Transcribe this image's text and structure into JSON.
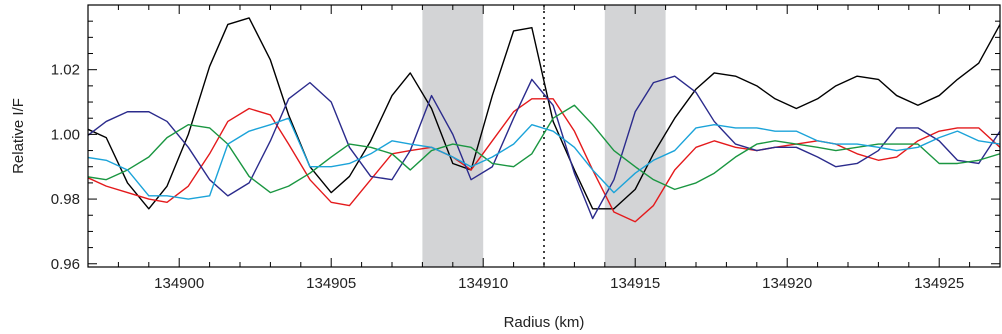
{
  "chart_data": {
    "type": "line",
    "title": "",
    "xlabel": "Radius (km)",
    "ylabel": "Relative I/F",
    "xlim": [
      134897.0,
      134927.0
    ],
    "ylim": [
      0.959,
      1.04
    ],
    "xticks": [
      134900,
      134905,
      134910,
      134915,
      134920,
      134925
    ],
    "xtick_labels": [
      "134900",
      "134905",
      "134910",
      "134915",
      "134920",
      "134925"
    ],
    "yticks": [
      0.96,
      0.98,
      1.0,
      1.02
    ],
    "ytick_labels": [
      "0.96",
      "0.98",
      "1.00",
      "1.02"
    ],
    "grid": false,
    "legend": "none",
    "shaded_regions": [
      {
        "x0": 134908.0,
        "x1": 134910.0,
        "color": "#d3d4d6"
      },
      {
        "x0": 134914.0,
        "x1": 134916.0,
        "color": "#d3d4d6"
      }
    ],
    "vertical_lines": [
      {
        "x": 134912.0,
        "style": "dotted",
        "color": "#000000"
      }
    ],
    "series": [
      {
        "color": "#000000",
        "x": [
          134896.9,
          134897.6,
          134898.3,
          134899.0,
          134899.6,
          134900.3,
          134901.0,
          134901.6,
          134902.3,
          134903.0,
          134903.6,
          134904.3,
          134905.0,
          134905.6,
          134906.3,
          134907.0,
          134907.6,
          134908.3,
          134909.0,
          134909.6,
          134910.3,
          134911.0,
          134911.6,
          134912.3,
          134913.0,
          134913.6,
          134914.3,
          134915.0,
          134915.6,
          134916.3,
          134917.0,
          134917.6,
          134918.3,
          134919.0,
          134919.6,
          134920.3,
          134921.0,
          134921.6,
          134922.3,
          134923.0,
          134923.6,
          134924.3,
          134925.0,
          134925.6,
          134926.3,
          134927.0
        ],
        "y": [
          1.002,
          0.999,
          0.985,
          0.977,
          0.984,
          1.0,
          1.021,
          1.034,
          1.036,
          1.023,
          1.006,
          0.99,
          0.982,
          0.987,
          0.998,
          1.012,
          1.019,
          1.008,
          0.991,
          0.989,
          1.012,
          1.032,
          1.033,
          1.004,
          0.989,
          0.977,
          0.977,
          0.983,
          0.994,
          1.005,
          1.014,
          1.019,
          1.018,
          1.015,
          1.011,
          1.008,
          1.011,
          1.015,
          1.018,
          1.017,
          1.012,
          1.009,
          1.012,
          1.017,
          1.022,
          1.034
        ]
      },
      {
        "color": "#e41a1c",
        "x": [
          134896.9,
          134897.6,
          134898.3,
          134899.0,
          134899.6,
          134900.3,
          134901.0,
          134901.6,
          134902.3,
          134903.0,
          134903.6,
          134904.3,
          134905.0,
          134905.6,
          134906.3,
          134907.0,
          134907.6,
          134908.3,
          134909.0,
          134909.6,
          134910.3,
          134911.0,
          134911.6,
          134912.3,
          134913.0,
          134913.6,
          134914.3,
          134915.0,
          134915.6,
          134916.3,
          134917.0,
          134917.6,
          134918.3,
          134919.0,
          134919.6,
          134920.3,
          134921.0,
          134921.6,
          134922.3,
          134923.0,
          134923.6,
          134924.3,
          134925.0,
          134925.6,
          134926.3,
          134927.0
        ],
        "y": [
          0.987,
          0.984,
          0.982,
          0.98,
          0.979,
          0.984,
          0.994,
          1.004,
          1.008,
          1.006,
          0.997,
          0.986,
          0.979,
          0.978,
          0.986,
          0.994,
          0.995,
          0.996,
          0.993,
          0.989,
          0.998,
          1.007,
          1.011,
          1.011,
          1.001,
          0.989,
          0.976,
          0.973,
          0.978,
          0.989,
          0.996,
          0.998,
          0.996,
          0.995,
          0.996,
          0.997,
          0.998,
          0.997,
          0.994,
          0.992,
          0.993,
          0.998,
          1.001,
          1.002,
          1.002,
          0.996
        ]
      },
      {
        "color": "#2b2b8c",
        "x": [
          134896.9,
          134897.6,
          134898.3,
          134899.0,
          134899.6,
          134900.3,
          134901.0,
          134901.6,
          134902.3,
          134903.0,
          134903.6,
          134904.3,
          134905.0,
          134905.6,
          134906.3,
          134907.0,
          134907.6,
          134908.3,
          134909.0,
          134909.6,
          134910.3,
          134911.0,
          134911.6,
          134912.3,
          134913.0,
          134913.6,
          134914.3,
          134915.0,
          134915.6,
          134916.3,
          134917.0,
          134917.6,
          134918.3,
          134919.0,
          134919.6,
          134920.3,
          134921.0,
          134921.6,
          134922.3,
          134923.0,
          134923.6,
          134924.3,
          134925.0,
          134925.6,
          134926.3,
          134927.0
        ],
        "y": [
          0.999,
          1.004,
          1.007,
          1.007,
          1.004,
          0.996,
          0.986,
          0.981,
          0.985,
          0.998,
          1.011,
          1.016,
          1.01,
          0.996,
          0.987,
          0.986,
          0.995,
          1.012,
          1.0,
          0.986,
          0.99,
          1.005,
          1.017,
          1.009,
          0.988,
          0.974,
          0.986,
          1.007,
          1.016,
          1.018,
          1.013,
          1.004,
          0.997,
          0.995,
          0.996,
          0.996,
          0.993,
          0.99,
          0.991,
          0.995,
          1.002,
          1.002,
          0.998,
          0.992,
          0.991,
          1.001
        ]
      },
      {
        "color": "#1a9641",
        "x": [
          134896.9,
          134897.6,
          134898.3,
          134899.0,
          134899.6,
          134900.3,
          134901.0,
          134901.6,
          134902.3,
          134903.0,
          134903.6,
          134904.3,
          134905.0,
          134905.6,
          134906.3,
          134907.0,
          134907.6,
          134908.3,
          134909.0,
          134909.6,
          134910.3,
          134911.0,
          134911.6,
          134912.3,
          134913.0,
          134913.6,
          134914.3,
          134915.0,
          134915.6,
          134916.3,
          134917.0,
          134917.6,
          134918.3,
          134919.0,
          134919.6,
          134920.3,
          134921.0,
          134921.6,
          134922.3,
          134923.0,
          134923.6,
          134924.3,
          134925.0,
          134925.6,
          134926.3,
          134927.0
        ],
        "y": [
          0.987,
          0.986,
          0.989,
          0.993,
          0.999,
          1.003,
          1.002,
          0.997,
          0.987,
          0.982,
          0.984,
          0.988,
          0.993,
          0.997,
          0.996,
          0.994,
          0.989,
          0.995,
          0.997,
          0.996,
          0.991,
          0.99,
          0.994,
          1.005,
          1.009,
          1.003,
          0.995,
          0.99,
          0.986,
          0.983,
          0.985,
          0.988,
          0.993,
          0.997,
          0.998,
          0.997,
          0.996,
          0.995,
          0.996,
          0.997,
          0.997,
          0.997,
          0.991,
          0.991,
          0.992,
          0.994
        ]
      },
      {
        "color": "#1ba3d9",
        "x": [
          134896.9,
          134897.6,
          134898.3,
          134899.0,
          134899.6,
          134900.3,
          134901.0,
          134901.6,
          134902.3,
          134903.0,
          134903.6,
          134904.3,
          134905.0,
          134905.6,
          134906.3,
          134907.0,
          134907.6,
          134908.3,
          134909.0,
          134909.6,
          134910.3,
          134911.0,
          134911.6,
          134912.3,
          134913.0,
          134913.6,
          134914.3,
          134915.0,
          134915.6,
          134916.3,
          134917.0,
          134917.6,
          134918.3,
          134919.0,
          134919.6,
          134920.3,
          134921.0,
          134921.6,
          134922.3,
          134923.0,
          134923.6,
          134924.3,
          134925.0,
          134925.6,
          134926.3,
          134927.0
        ],
        "y": [
          0.993,
          0.992,
          0.989,
          0.981,
          0.981,
          0.98,
          0.981,
          0.997,
          1.001,
          1.003,
          1.005,
          0.99,
          0.99,
          0.991,
          0.994,
          0.998,
          0.997,
          0.996,
          0.993,
          0.99,
          0.993,
          0.997,
          1.003,
          1.001,
          0.996,
          0.989,
          0.982,
          0.988,
          0.992,
          0.995,
          1.002,
          1.003,
          1.002,
          1.002,
          1.001,
          1.001,
          0.998,
          0.997,
          0.997,
          0.996,
          0.995,
          0.996,
          0.999,
          1.001,
          0.998,
          0.997
        ]
      }
    ]
  }
}
